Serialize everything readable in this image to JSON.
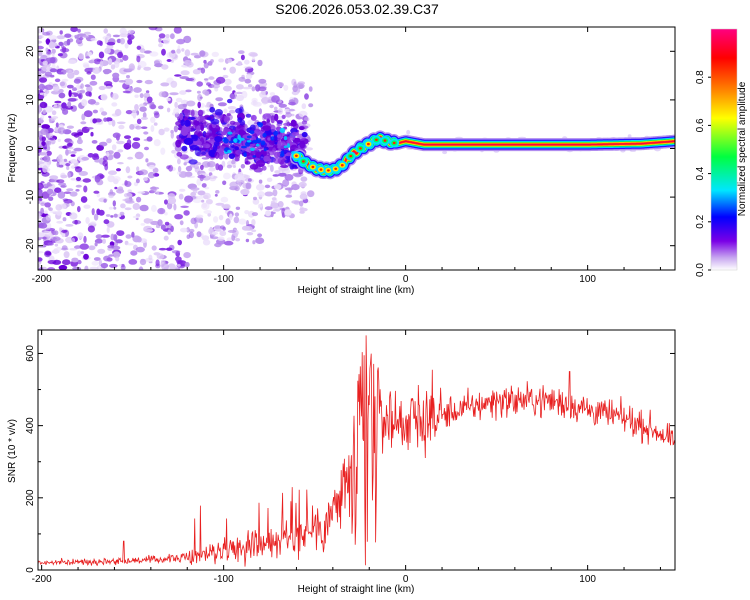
{
  "title": "S206.2026.053.02.39.C37",
  "chart_data": [
    {
      "type": "heatmap",
      "name": "spectrogram",
      "xlabel": "Height of straight line (km)",
      "ylabel": "Frequency (Hz)",
      "xlim": [
        -202,
        148
      ],
      "ylim": [
        -25,
        25
      ],
      "xticks": [
        -200,
        -100,
        0,
        100
      ],
      "xtick_labels": [
        "-200",
        "-100",
        "0",
        "100"
      ],
      "yticks": [
        -20,
        -10,
        0,
        10,
        20
      ],
      "ytick_labels": [
        "-20",
        "-10",
        "0",
        "10",
        "20"
      ],
      "colorbar": {
        "label": "Normalized spectral amplitude",
        "range": [
          0,
          1
        ],
        "ticks": [
          0.0,
          0.2,
          0.4,
          0.6,
          0.8
        ],
        "tick_labels": [
          "0.0",
          "0.2",
          "0.4",
          "0.6",
          "0.8"
        ],
        "colors": [
          "#ffffff",
          "#c8a8f0",
          "#7a00e6",
          "#0000ff",
          "#00e6ff",
          "#00ff40",
          "#ffff00",
          "#ff8000",
          "#ff0000",
          "#ff0080"
        ]
      },
      "ridge": {
        "description": "dominant frequency track",
        "x": [
          -60,
          -55,
          -50,
          -45,
          -40,
          -35,
          -30,
          -25,
          -20,
          -15,
          -10,
          -5,
          0,
          10,
          50,
          100,
          130,
          148
        ],
        "y": [
          -1.5,
          -3,
          -4,
          -4.5,
          -4.5,
          -3.5,
          -1.5,
          0,
          1,
          2,
          1.5,
          1,
          1.5,
          0.8,
          0.8,
          0.8,
          1,
          1.5
        ]
      }
    },
    {
      "type": "line",
      "name": "snr",
      "xlabel": "Height of straight line (km)",
      "ylabel": "SNR (10 * v/v)",
      "color": "#e82020",
      "xlim": [
        -202,
        148
      ],
      "ylim": [
        0,
        665
      ],
      "xticks": [
        -200,
        -100,
        0,
        100
      ],
      "xtick_labels": [
        "-200",
        "-100",
        "0",
        "100"
      ],
      "yticks": [
        0,
        200,
        400,
        600
      ],
      "ytick_labels": [
        "0",
        "200",
        "400",
        "600"
      ],
      "envelope": {
        "x": [
          -202,
          -180,
          -160,
          -140,
          -120,
          -100,
          -80,
          -60,
          -45,
          -35,
          -30,
          -25,
          -22,
          -20,
          -18,
          -15,
          -10,
          0,
          20,
          50,
          80,
          100,
          120,
          140,
          148
        ],
        "y": [
          20,
          22,
          25,
          28,
          35,
          55,
          75,
          95,
          130,
          200,
          270,
          350,
          560,
          380,
          400,
          430,
          420,
          410,
          430,
          470,
          470,
          445,
          420,
          380,
          350
        ]
      }
    }
  ]
}
